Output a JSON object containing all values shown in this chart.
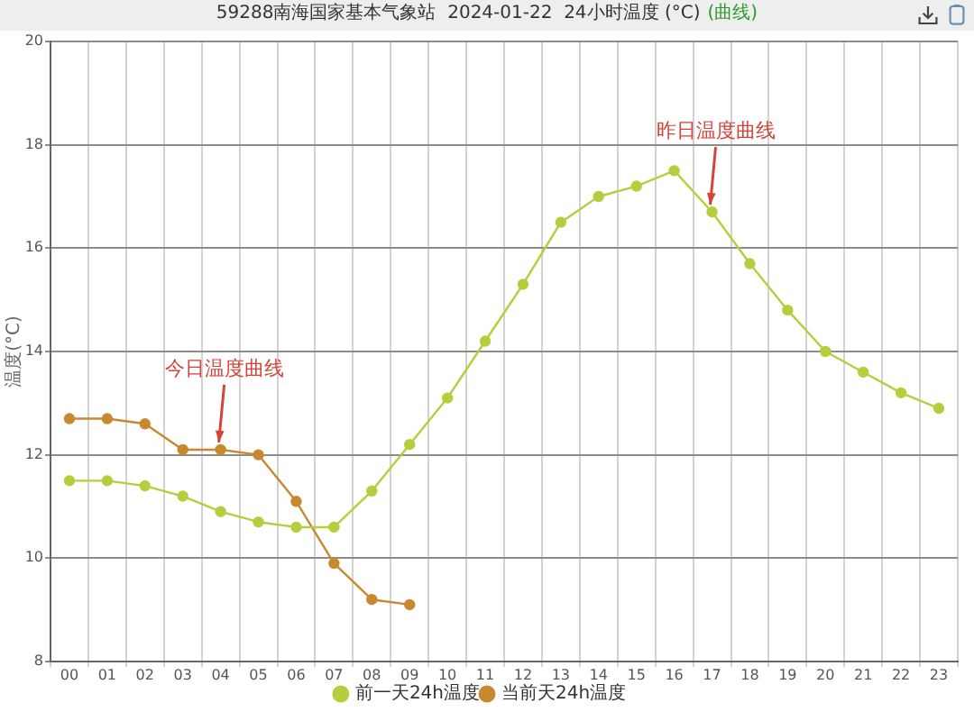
{
  "chart_data": {
    "type": "line",
    "title": "59288南海国家基本气象站  2024-01-22  24小时温度 (°C)",
    "subtitle": "(曲线)",
    "ylabel": "温度(°C)",
    "categories": [
      "00",
      "01",
      "02",
      "03",
      "04",
      "05",
      "06",
      "07",
      "08",
      "09",
      "10",
      "11",
      "12",
      "13",
      "14",
      "15",
      "16",
      "17",
      "18",
      "19",
      "20",
      "21",
      "22",
      "23"
    ],
    "series": [
      {
        "name": "前一天24h温度",
        "color": "#b4cf3e",
        "values": [
          11.5,
          11.5,
          11.4,
          11.2,
          10.9,
          10.7,
          10.6,
          10.6,
          11.3,
          12.2,
          13.1,
          14.2,
          15.3,
          16.5,
          17.0,
          17.2,
          17.5,
          16.7,
          15.7,
          14.8,
          14.0,
          13.6,
          13.2,
          12.9
        ]
      },
      {
        "name": "当前天24h温度",
        "color": "#c8892e",
        "values": [
          12.7,
          12.7,
          12.6,
          12.1,
          12.1,
          12.0,
          11.1,
          9.9,
          9.2,
          9.1,
          null,
          null,
          null,
          null,
          null,
          null,
          null,
          null,
          null,
          null,
          null,
          null,
          null,
          null
        ]
      }
    ],
    "ylim": [
      8,
      20
    ],
    "yticks": [
      8,
      10,
      12,
      14,
      16,
      18,
      20
    ],
    "grid": true,
    "legend": "bottom",
    "marker": "circle",
    "line_style": "solid",
    "annotations": [
      {
        "text": "昨日温度曲线",
        "x": "17",
        "y": 16.7
      },
      {
        "text": "今日温度曲线",
        "x": "04",
        "y": 12.1
      }
    ]
  }
}
